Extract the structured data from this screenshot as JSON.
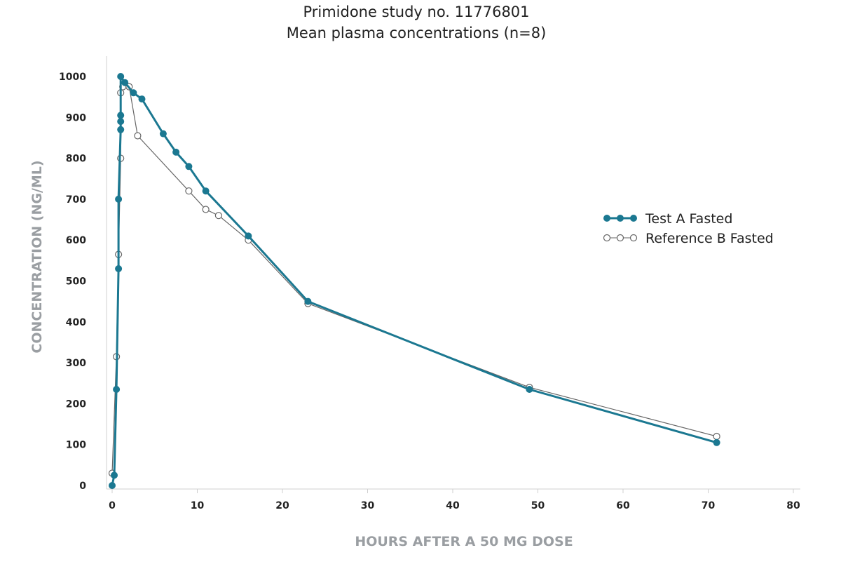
{
  "chart_data": {
    "type": "line",
    "title": "Primidone study no. 11776801",
    "subtitle": "Mean plasma concentrations (n=8)",
    "xlabel": "HOURS AFTER A 50 MG DOSE",
    "ylabel": "CONCENTRATION (NG/ML)",
    "xlim": [
      0,
      80
    ],
    "ylim": [
      0,
      1000
    ],
    "x_ticks": [
      0,
      10,
      20,
      30,
      40,
      50,
      60,
      70,
      80
    ],
    "y_ticks": [
      0,
      100,
      200,
      300,
      400,
      500,
      600,
      700,
      800,
      900,
      1000
    ],
    "grid": false,
    "legend_position": "right",
    "series": [
      {
        "name": "Test A Fasted",
        "color": "#1b7891",
        "marker": "filled-circle",
        "points": [
          [
            0,
            0
          ],
          [
            0.25,
            25
          ],
          [
            0.5,
            235
          ],
          [
            0.75,
            530
          ],
          [
            0.75,
            700
          ],
          [
            1.0,
            870
          ],
          [
            1.0,
            890
          ],
          [
            1.0,
            905
          ],
          [
            1.0,
            1000
          ],
          [
            1.5,
            985
          ],
          [
            2.5,
            960
          ],
          [
            3.5,
            945
          ],
          [
            6.0,
            860
          ],
          [
            7.5,
            815
          ],
          [
            9.0,
            780
          ],
          [
            11.0,
            720
          ],
          [
            16.0,
            610
          ],
          [
            23.0,
            450
          ],
          [
            49.0,
            235
          ],
          [
            71.0,
            105
          ]
        ]
      },
      {
        "name": "Reference B Fasted",
        "color": "#666666",
        "marker": "open-circle",
        "points": [
          [
            0,
            30
          ],
          [
            0.5,
            315
          ],
          [
            0.75,
            565
          ],
          [
            1.0,
            800
          ],
          [
            1.0,
            960
          ],
          [
            1.25,
            975
          ],
          [
            2.0,
            975
          ],
          [
            3.0,
            855
          ],
          [
            9.0,
            720
          ],
          [
            11.0,
            675
          ],
          [
            12.5,
            660
          ],
          [
            16.0,
            600
          ],
          [
            23.0,
            445
          ],
          [
            49.0,
            240
          ],
          [
            71.0,
            120
          ]
        ]
      }
    ]
  }
}
